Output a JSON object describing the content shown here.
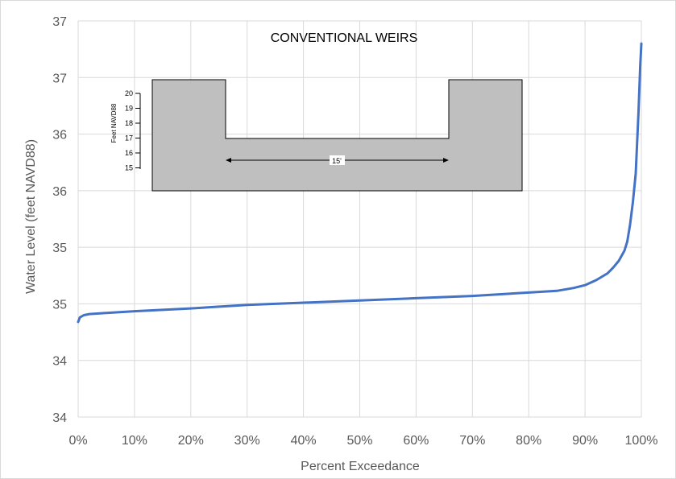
{
  "chart_data": {
    "type": "line",
    "title": "",
    "xlabel": "Percent Exceedance",
    "ylabel": "Water Level (feet NAVD88)",
    "xlim": [
      0,
      100
    ],
    "ylim": [
      34,
      37.5
    ],
    "x_ticks": [
      "0%",
      "10%",
      "20%",
      "30%",
      "40%",
      "50%",
      "60%",
      "70%",
      "80%",
      "90%",
      "100%"
    ],
    "y_tick_values": [
      34,
      34.5,
      35,
      35.5,
      36,
      36.5,
      37,
      37.5
    ],
    "y_ticks": [
      "34",
      "34",
      "35",
      "35",
      "36",
      "36",
      "37",
      "37"
    ],
    "grid": true,
    "legend": "none",
    "colors": {
      "line": "#4472C4",
      "grid": "#D9D9D9",
      "inset_fill": "#BFBFBF"
    },
    "series": [
      {
        "x": [
          0,
          0.3,
          1,
          2,
          5,
          10,
          20,
          30,
          40,
          50,
          60,
          70,
          80,
          85,
          88,
          90,
          92,
          94,
          95,
          96,
          97,
          97.5,
          98,
          98.5,
          99,
          99.5,
          99.8,
          100
        ],
        "values": [
          34.84,
          34.88,
          34.9,
          34.91,
          34.92,
          34.935,
          34.96,
          34.99,
          35.01,
          35.03,
          35.05,
          35.07,
          35.1,
          35.115,
          35.14,
          35.165,
          35.21,
          35.27,
          35.32,
          35.38,
          35.47,
          35.55,
          35.7,
          35.9,
          36.15,
          36.7,
          37.1,
          37.3
        ]
      }
    ],
    "inset": {
      "title": "CONVENTIONAL WEIRS",
      "axis_label": "Feet NAVD88",
      "ticks": [
        "20",
        "19",
        "18",
        "17",
        "16",
        "15"
      ],
      "dimension_label": "15'"
    }
  }
}
